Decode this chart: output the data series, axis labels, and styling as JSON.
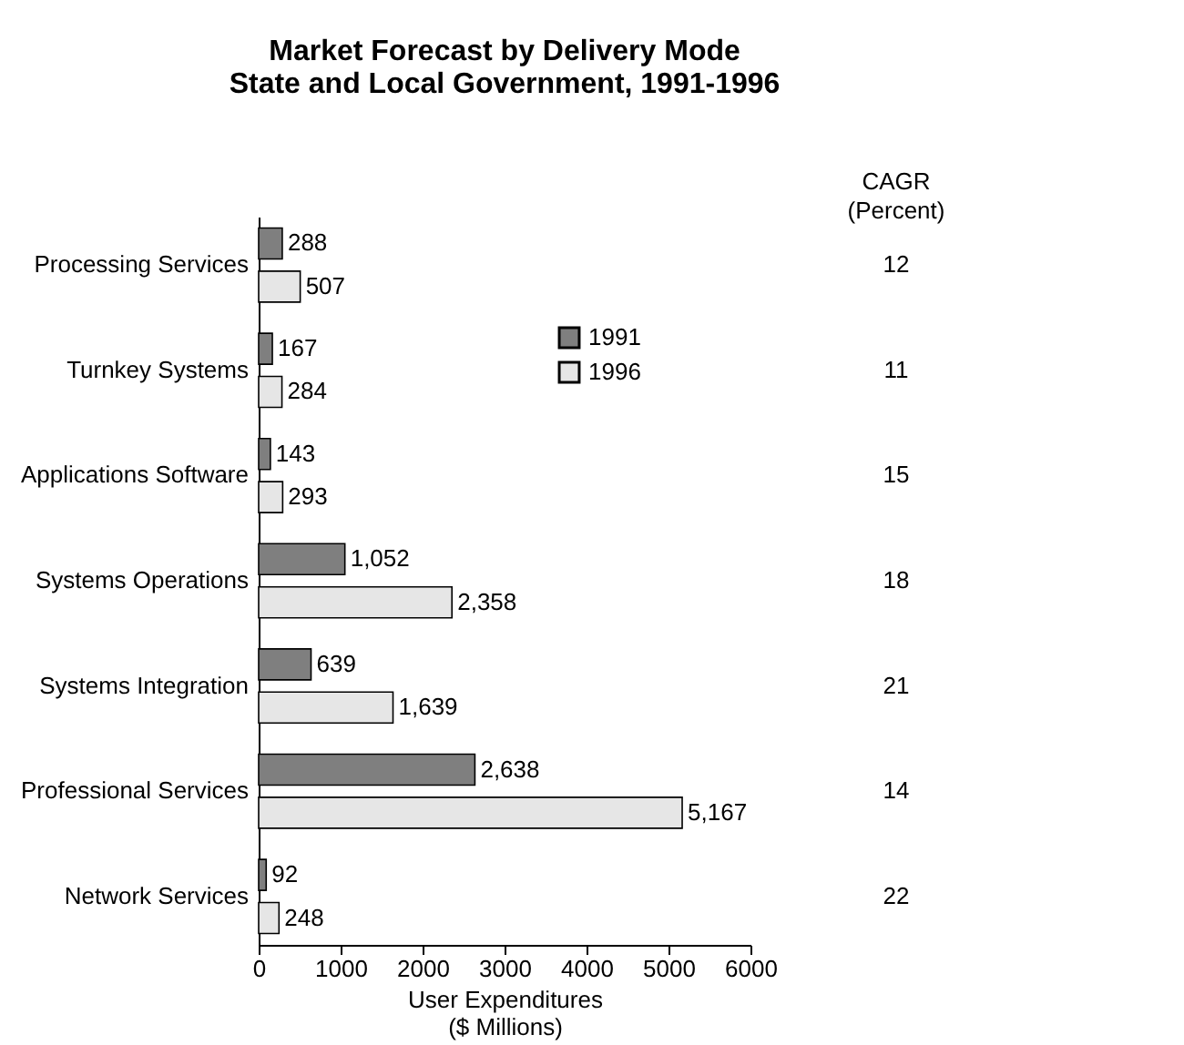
{
  "chart_data": {
    "type": "bar",
    "orientation": "horizontal",
    "title": "Market Forecast by Delivery Mode\nState and Local Government, 1991-1996",
    "xlabel": "User Expenditures\n($ Millions)",
    "categories": [
      "Processing Services",
      "Turnkey Systems",
      "Applications Software",
      "Systems Operations",
      "Systems Integration",
      "Professional Services",
      "Network Services"
    ],
    "series": [
      {
        "name": "1991",
        "color": "#7f7f7f",
        "values": [
          288,
          167,
          143,
          1052,
          639,
          2638,
          92
        ],
        "value_labels": [
          "288",
          "167",
          "143",
          "1,052",
          "639",
          "2,638",
          "92"
        ]
      },
      {
        "name": "1996",
        "color": "#e6e6e6",
        "values": [
          507,
          284,
          293,
          2358,
          1639,
          5167,
          248
        ],
        "value_labels": [
          "507",
          "284",
          "293",
          "2,358",
          "1,639",
          "5,167",
          "248"
        ]
      }
    ],
    "xlim": [
      0,
      6000
    ],
    "xticks": [
      0,
      1000,
      2000,
      3000,
      4000,
      5000,
      6000
    ],
    "grid": false,
    "legend": "top right",
    "annotations": [
      "CAGR\n(Percent)",
      "12",
      "11",
      "15",
      "18",
      "21",
      "14",
      "22"
    ]
  }
}
